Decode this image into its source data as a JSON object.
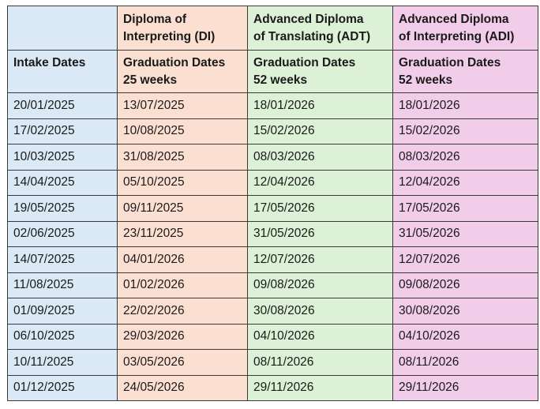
{
  "columns": [
    {
      "program_lines": [],
      "header_lines": [
        "Intake Dates"
      ]
    },
    {
      "program_lines": [
        "Diploma of",
        "Interpreting (DI)"
      ],
      "header_lines": [
        "Graduation Dates",
        "25 weeks"
      ]
    },
    {
      "program_lines": [
        "Advanced Diploma",
        "of Translating (ADT)"
      ],
      "header_lines": [
        "Graduation Dates",
        "52 weeks"
      ]
    },
    {
      "program_lines": [
        "Advanced Diploma",
        "of Interpreting (ADI)"
      ],
      "header_lines": [
        "Graduation Dates",
        "52 weeks"
      ]
    }
  ],
  "rows": [
    [
      "20/01/2025",
      "13/07/2025",
      "18/01/2026",
      "18/01/2026"
    ],
    [
      "17/02/2025",
      "10/08/2025",
      "15/02/2026",
      "15/02/2026"
    ],
    [
      "10/03/2025",
      "31/08/2025",
      "08/03/2026",
      "08/03/2026"
    ],
    [
      "14/04/2025",
      "05/10/2025",
      "12/04/2026",
      "12/04/2026"
    ],
    [
      "19/05/2025",
      "09/11/2025",
      "17/05/2026",
      "17/05/2026"
    ],
    [
      "02/06/2025",
      "23/11/2025",
      "31/05/2026",
      "31/05/2026"
    ],
    [
      "14/07/2025",
      "04/01/2026",
      "12/07/2026",
      "12/07/2026"
    ],
    [
      "11/08/2025",
      "01/02/2026",
      "09/08/2026",
      "09/08/2026"
    ],
    [
      "01/09/2025",
      "22/02/2026",
      "30/08/2026",
      "30/08/2026"
    ],
    [
      "06/10/2025",
      "29/03/2026",
      "04/10/2026",
      "04/10/2026"
    ],
    [
      "10/11/2025",
      "03/05/2026",
      "08/11/2026",
      "08/11/2026"
    ],
    [
      "01/12/2025",
      "24/05/2026",
      "29/11/2026",
      "29/11/2026"
    ]
  ],
  "colors": {
    "intake_column": "#dbe9f7",
    "di_column": "#fbe0d2",
    "adt_column": "#ddf1d6",
    "adi_column": "#f2cdea",
    "border": "#3a3a3a"
  }
}
